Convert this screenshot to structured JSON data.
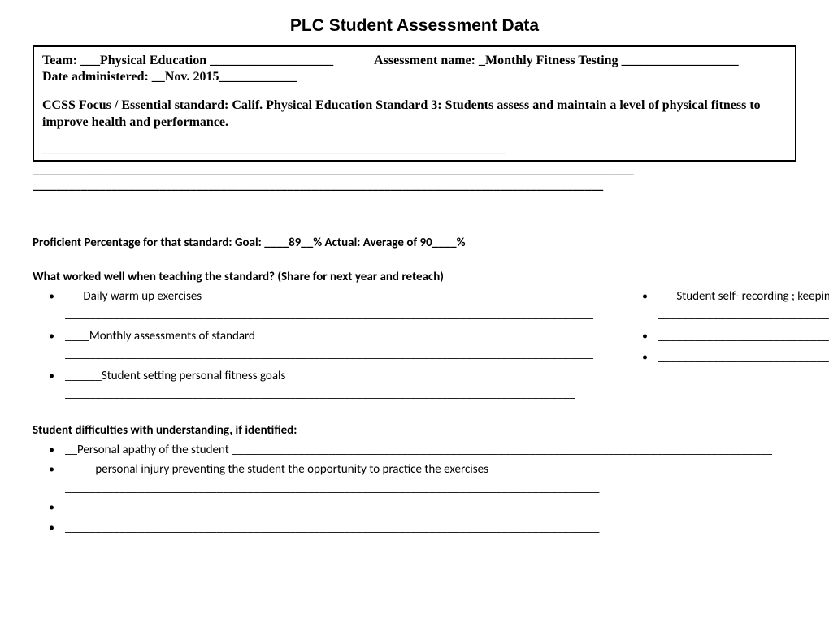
{
  "title": "PLC Student Assessment Data",
  "header": {
    "team_label": "Team: ",
    "team_value": "___Physical Education ___________________",
    "assessment_label": "Assessment name:  ",
    "assessment_value": "_Monthly Fitness Testing __________________",
    "date_label": "Date administered:  ",
    "date_value": "__Nov. 2015____________",
    "ccss_label": "CCSS Focus / Essential standard: ",
    "ccss_value": "Calif. Physical Education Standard 3:  Students assess and maintain a level of physical fitness to improve health and performance.",
    "blank_inside": "____________________________________________________________________________",
    "blank_under_1": "___________________________________________________________________________________________________",
    "blank_under_2": "______________________________________________________________________________________________"
  },
  "proficient": {
    "label": "Proficient Percentage for that standard:   Goal: ",
    "goal": "____89__%",
    "actual_label": "       Actual:  Average of ",
    "actual": "90____%"
  },
  "worked_well": {
    "heading": "What worked well when teaching the standard? (Share for next year and reteach)",
    "left": [
      "___Daily warm up  exercises  _______________________________________________________________________________________",
      "____Monthly assessments  of standard _______________________________________________________________________________________",
      "______Student setting personal fitness goals ____________________________________________________________________________________"
    ],
    "right": [
      "___Student  self- recording ; keeping a personal fitness log / record ____________________________________________",
      "_______________________________________________________________________________________",
      "_______________________________________________________________________________________"
    ]
  },
  "difficulties": {
    "heading": "Student difficulties with understanding, if identified:",
    "items": [
      "__Personal apathy of the student  _________________________________________________________________________________________",
      "_____personal injury  preventing the student the opportunity to practice the exercises ________________________________________________________________________________________",
      "________________________________________________________________________________________",
      "________________________________________________________________________________________"
    ]
  },
  "colors": {
    "text": "#000000",
    "background": "#ffffff",
    "border": "#000000"
  },
  "typography": {
    "title_font": "Arial Black",
    "title_size_pt": 16,
    "header_font": "Times New Roman",
    "header_size_pt": 12,
    "body_font": "Calibri",
    "body_size_pt": 11
  }
}
